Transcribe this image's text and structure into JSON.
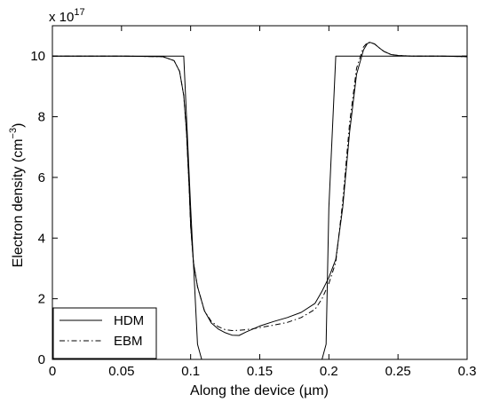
{
  "chart_data": {
    "type": "line",
    "xlabel": "Along the device (µm)",
    "ylabel_main": "Electron density (cm",
    "ylabel_exp": "−3",
    "ylabel_close": ")",
    "y_multiplier_base": "x 10",
    "y_multiplier_exp": "17",
    "xlim": [
      0,
      0.3
    ],
    "ylim": [
      0,
      11
    ],
    "xticks": [
      0,
      0.05,
      0.1,
      0.15,
      0.2,
      0.25,
      0.3
    ],
    "xtick_labels": [
      "0",
      "0.05",
      "0.1",
      "0.15",
      "0.2",
      "0.25",
      "0.3"
    ],
    "yticks": [
      0,
      2,
      4,
      6,
      8,
      10
    ],
    "ytick_labels": [
      "0",
      "2",
      "4",
      "6",
      "8",
      "10"
    ],
    "legend_position": "bottom-left",
    "series": [
      {
        "name": "HDM",
        "style": "solid",
        "x": [
          0,
          0.05,
          0.08,
          0.088,
          0.092,
          0.095,
          0.097,
          0.099,
          0.1,
          0.102,
          0.105,
          0.11,
          0.115,
          0.12,
          0.125,
          0.13,
          0.135,
          0.14,
          0.145,
          0.15,
          0.16,
          0.17,
          0.18,
          0.19,
          0.195,
          0.2,
          0.205,
          0.21,
          0.215,
          0.22,
          0.225,
          0.228,
          0.23,
          0.233,
          0.237,
          0.24,
          0.245,
          0.25,
          0.26,
          0.28,
          0.3
        ],
        "y": [
          10,
          10,
          9.98,
          9.85,
          9.5,
          8.7,
          7.5,
          5.6,
          4.4,
          3.2,
          2.4,
          1.6,
          1.2,
          1.0,
          0.88,
          0.8,
          0.79,
          0.9,
          1.0,
          1.1,
          1.25,
          1.38,
          1.55,
          1.85,
          2.25,
          2.7,
          3.3,
          5.0,
          7.5,
          9.4,
          10.2,
          10.42,
          10.45,
          10.4,
          10.25,
          10.15,
          10.05,
          10.02,
          10.0,
          10.0,
          9.98
        ]
      },
      {
        "name": "EBM",
        "style": "dash-dot",
        "x": [
          0,
          0.05,
          0.08,
          0.088,
          0.092,
          0.095,
          0.097,
          0.099,
          0.1,
          0.102,
          0.105,
          0.11,
          0.115,
          0.12,
          0.125,
          0.13,
          0.135,
          0.14,
          0.145,
          0.15,
          0.16,
          0.17,
          0.18,
          0.19,
          0.195,
          0.2,
          0.205,
          0.21,
          0.215,
          0.22,
          0.225,
          0.228,
          0.23,
          0.233,
          0.237,
          0.24,
          0.245,
          0.25,
          0.26,
          0.28,
          0.3
        ],
        "y": [
          10,
          10,
          9.98,
          9.85,
          9.5,
          8.7,
          7.5,
          5.6,
          4.4,
          3.2,
          2.4,
          1.6,
          1.25,
          1.08,
          0.98,
          0.95,
          0.96,
          0.98,
          1.01,
          1.05,
          1.13,
          1.22,
          1.38,
          1.65,
          2.0,
          2.5,
          3.2,
          5.2,
          7.8,
          9.6,
          10.3,
          10.45,
          10.45,
          10.4,
          10.25,
          10.15,
          10.05,
          10.02,
          10.0,
          10.0,
          9.98
        ]
      },
      {
        "name": "",
        "style": "solid",
        "x": [
          0,
          0.095,
          0.1,
          0.105,
          0.108,
          0.195,
          0.198,
          0.2,
          0.205,
          0.3
        ],
        "y": [
          10,
          10,
          5.0,
          0.5,
          0.0,
          0.0,
          0.5,
          5.0,
          10,
          10
        ]
      }
    ]
  }
}
